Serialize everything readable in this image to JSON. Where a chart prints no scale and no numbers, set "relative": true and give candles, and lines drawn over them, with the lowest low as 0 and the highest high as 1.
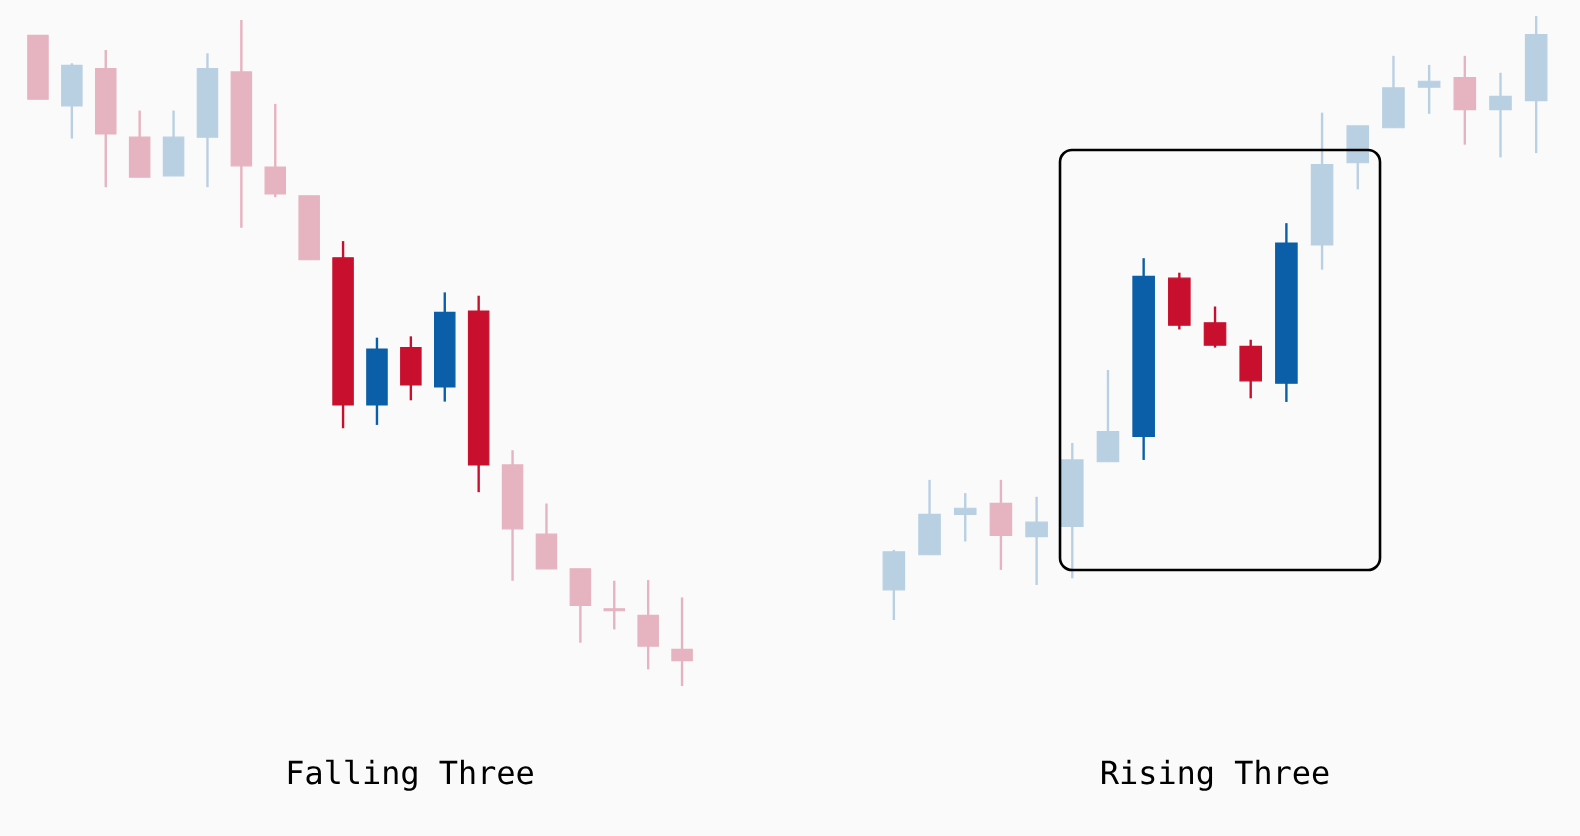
{
  "chart_data": [
    {
      "type": "candlestick",
      "title": "Falling Three",
      "relative": true,
      "categories": [
        null,
        null,
        null,
        null,
        null,
        null,
        null,
        null,
        null,
        null,
        null,
        null,
        null,
        null,
        null,
        null,
        null,
        null,
        null,
        null
      ],
      "ohlc": [
        [
          0.977,
          0.977,
          0.881,
          0.881
        ],
        [
          0.871,
          0.935,
          0.822,
          0.932
        ],
        [
          0.927,
          0.955,
          0.749,
          0.829
        ],
        [
          0.824,
          0.864,
          0.764,
          0.764
        ],
        [
          0.766,
          0.864,
          0.766,
          0.824
        ],
        [
          0.824,
          0.95,
          0.749,
          0.927
        ],
        [
          0.922,
          1.0,
          0.688,
          0.781
        ],
        [
          0.779,
          0.874,
          0.734,
          0.739
        ],
        [
          0.736,
          0.736,
          0.64,
          0.64
        ],
        [
          0.643,
          0.668,
          0.387,
          0.422
        ],
        [
          0.422,
          0.523,
          0.392,
          0.506
        ],
        [
          0.508,
          0.525,
          0.429,
          0.452
        ],
        [
          0.449,
          0.591,
          0.427,
          0.561
        ],
        [
          0.563,
          0.586,
          0.291,
          0.332
        ],
        [
          0.332,
          0.354,
          0.158,
          0.236
        ],
        [
          0.228,
          0.274,
          0.176,
          0.176
        ],
        [
          0.176,
          0.176,
          0.065,
          0.121
        ],
        [
          0.116,
          0.158,
          0.085,
          0.113
        ],
        [
          0.106,
          0.159,
          0.025,
          0.06
        ],
        [
          0.055,
          0.133,
          0.0,
          0.038
        ]
      ],
      "colors": [
        "#e6b3c0",
        "#b9d0e3",
        "#e6b3c0",
        "#e6b3c0",
        "#b9d0e3",
        "#b9d0e3",
        "#e6b3c0",
        "#e6b3c0",
        "#e6b3c0",
        "#c8102e",
        "#0b5fa8",
        "#c8102e",
        "#0b5fa8",
        "#c8102e",
        "#e6b3c0",
        "#e6b3c0",
        "#e6b3c0",
        "#e6b3c0",
        "#e6b3c0",
        "#e6b3c0"
      ]
    },
    {
      "type": "candlestick",
      "title": "Rising Three",
      "relative": true,
      "categories": [
        null,
        null,
        null,
        null,
        null,
        null,
        null,
        null,
        null,
        null,
        null,
        null,
        null,
        null,
        null,
        null,
        null,
        null,
        null
      ],
      "ohlc": [
        [
          0.05,
          0.116,
          0.0,
          0.113
        ],
        [
          0.108,
          0.232,
          0.108,
          0.175
        ],
        [
          0.175,
          0.21,
          0.13,
          0.185
        ],
        [
          0.193,
          0.232,
          0.083,
          0.14
        ],
        [
          0.138,
          0.204,
          0.058,
          0.162
        ],
        [
          0.155,
          0.293,
          0.069,
          0.265
        ],
        [
          0.262,
          0.414,
          0.262,
          0.312
        ],
        [
          0.304,
          0.599,
          0.265,
          0.569
        ],
        [
          0.566,
          0.575,
          0.481,
          0.488
        ],
        [
          0.492,
          0.519,
          0.451,
          0.455
        ],
        [
          0.453,
          0.464,
          0.367,
          0.396
        ],
        [
          0.392,
          0.657,
          0.361,
          0.624
        ],
        [
          0.621,
          0.84,
          0.58,
          0.754
        ],
        [
          0.757,
          0.818,
          0.713,
          0.818
        ],
        [
          0.815,
          0.934,
          0.815,
          0.881
        ],
        [
          0.882,
          0.919,
          0.838,
          0.892
        ],
        [
          0.898,
          0.934,
          0.787,
          0.845
        ],
        [
          0.845,
          0.906,
          0.766,
          0.867
        ],
        [
          0.86,
          1.0,
          0.773,
          0.969
        ]
      ],
      "colors": [
        "#b9d0e3",
        "#b9d0e3",
        "#b9d0e3",
        "#e6b3c0",
        "#b9d0e3",
        "#b9d0e3",
        "#b9d0e3",
        "#0b5fa8",
        "#c8102e",
        "#c8102e",
        "#c8102e",
        "#0b5fa8",
        "#b9d0e3",
        "#b9d0e3",
        "#b9d0e3",
        "#b9d0e3",
        "#e6b3c0",
        "#b9d0e3",
        "#b9d0e3"
      ]
    }
  ]
}
